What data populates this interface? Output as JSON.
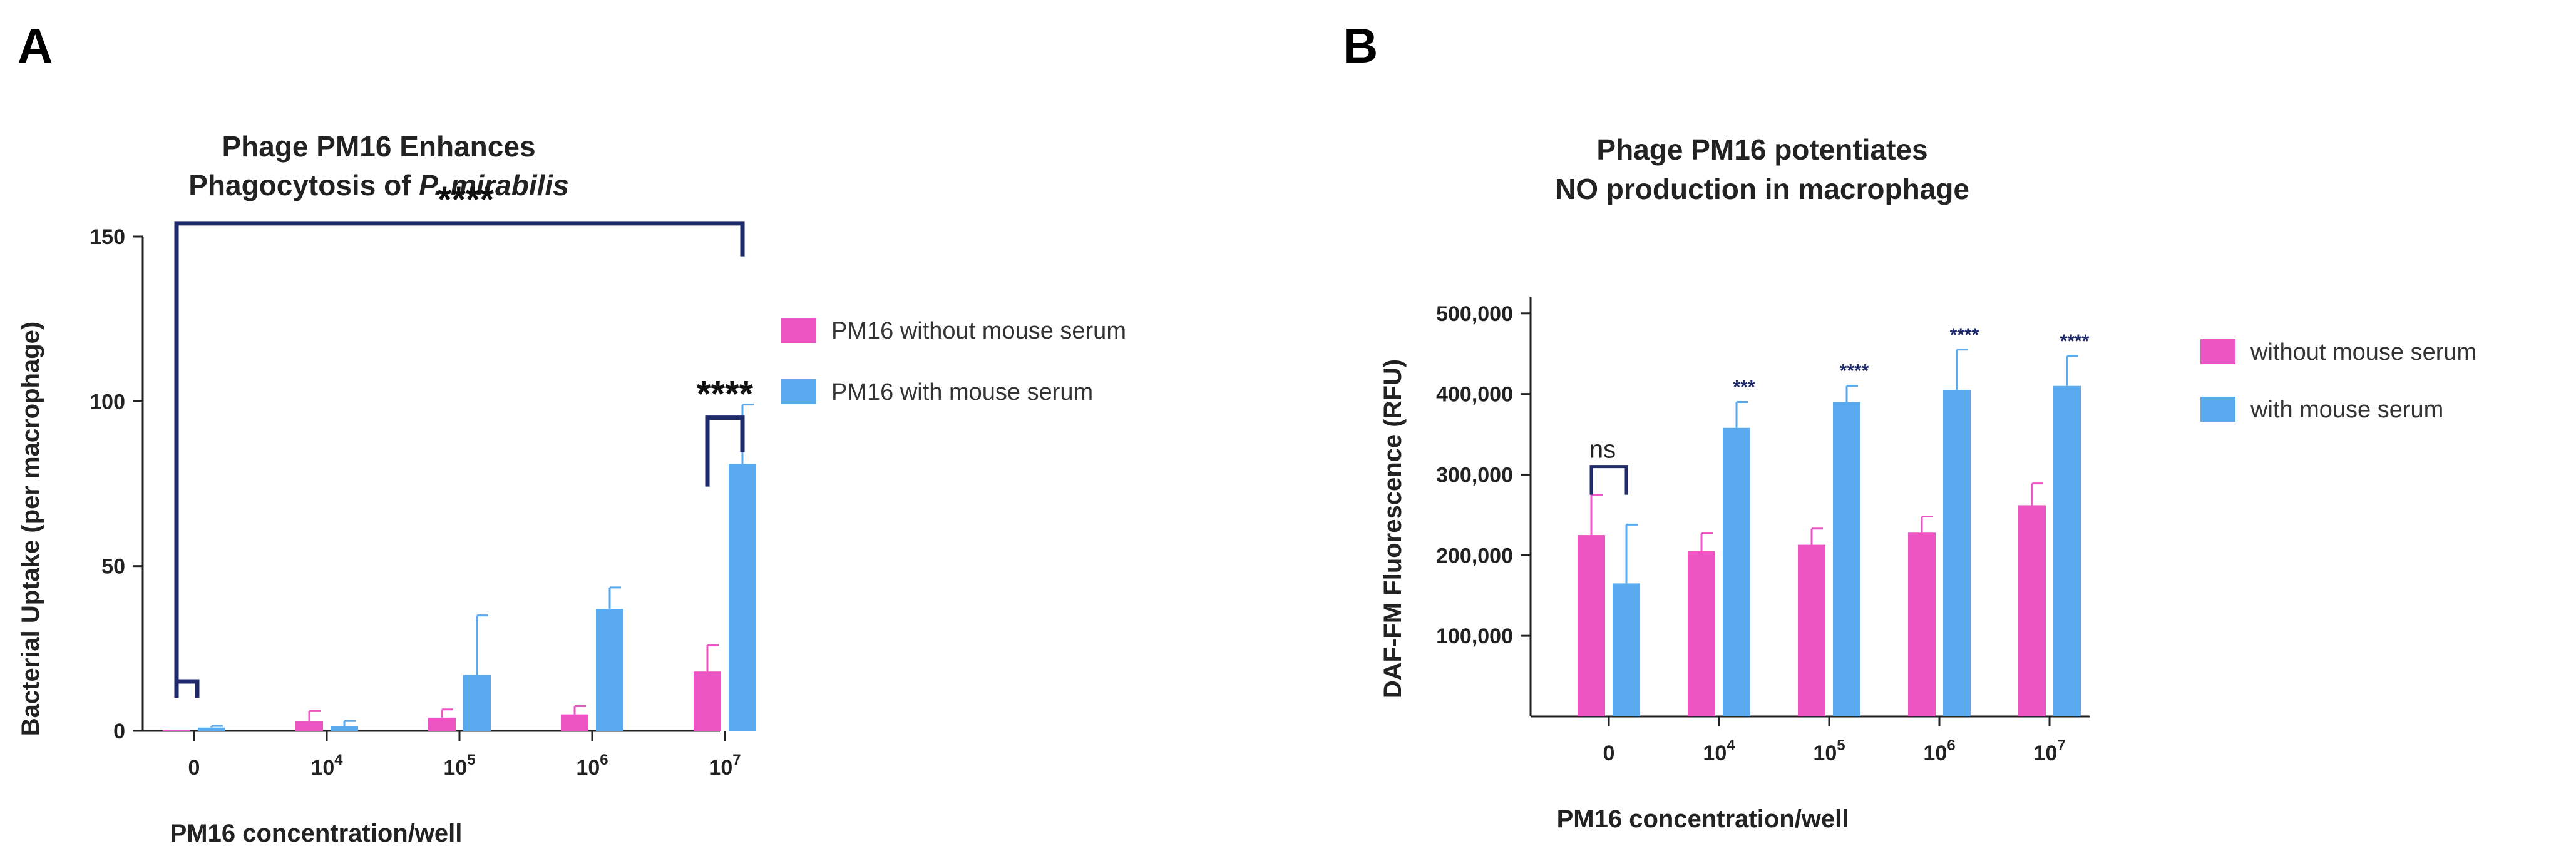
{
  "panels": {
    "a": {
      "letter": "A"
    },
    "b": {
      "letter": "B"
    }
  },
  "colors": {
    "without": "#ee55c4",
    "with": "#5aaaf0",
    "bracket": "#1f2a6b",
    "axis": "#222222"
  },
  "chart_data": [
    {
      "type": "bar",
      "title_line1": "Phage PM16 Enhances",
      "title_line2_prefix": "Phagocytosis of ",
      "title_line2_italic": "P. mirabilis",
      "xlabel": "PM16 concentration/well",
      "ylabel": "Bacterial Uptake (per macrophage)",
      "ylim": [
        0,
        150
      ],
      "yticks": [
        "0",
        "50",
        "100",
        "150"
      ],
      "ytick_values": [
        0,
        50,
        100,
        150
      ],
      "categories": [
        {
          "base": "0",
          "exp": ""
        },
        {
          "base": "10",
          "exp": "4"
        },
        {
          "base": "10",
          "exp": "5"
        },
        {
          "base": "10",
          "exp": "6"
        },
        {
          "base": "10",
          "exp": "7"
        }
      ],
      "series": [
        {
          "name": "PM16 without mouse serum",
          "values": [
            0,
            3,
            4,
            5,
            18
          ],
          "errors": [
            0,
            3,
            2.5,
            2.5,
            8
          ]
        },
        {
          "name": "PM16 with mouse serum",
          "values": [
            1,
            1.5,
            17,
            37,
            81
          ],
          "errors": [
            0.5,
            1.5,
            18,
            6.5,
            18
          ]
        }
      ],
      "legend_position": "right",
      "annotations": [
        {
          "label": "****",
          "type": "wide",
          "from_category": 0,
          "to_category": 4,
          "level": 154
        },
        {
          "label": "****",
          "type": "pair",
          "category": 4,
          "level": 95
        }
      ]
    },
    {
      "type": "bar",
      "title_line1": "Phage PM16 potentiates",
      "title_line2": "NO production in macrophage",
      "xlabel": "PM16 concentration/well",
      "ylabel": "DAF-FM Fluorescence (RFU)",
      "ylim": [
        0,
        520000
      ],
      "yticks": [
        "100,000",
        "200,000",
        "300,000",
        "400,000",
        "500,000"
      ],
      "ytick_values": [
        100000,
        200000,
        300000,
        400000,
        500000
      ],
      "categories": [
        {
          "base": "0",
          "exp": ""
        },
        {
          "base": "10",
          "exp": "4"
        },
        {
          "base": "10",
          "exp": "5"
        },
        {
          "base": "10",
          "exp": "6"
        },
        {
          "base": "10",
          "exp": "7"
        }
      ],
      "series": [
        {
          "name": "without mouse serum",
          "values": [
            225000,
            205000,
            213000,
            228000,
            262000
          ],
          "errors": [
            50000,
            22000,
            20000,
            20000,
            27000
          ]
        },
        {
          "name": "with mouse serum",
          "values": [
            165000,
            358000,
            390000,
            405000,
            410000
          ],
          "errors": [
            73000,
            32000,
            20000,
            50000,
            37000
          ]
        }
      ],
      "legend_position": "right",
      "annotations": [
        {
          "label": "ns",
          "type": "pair",
          "category": 0,
          "level": 310000
        },
        {
          "label": "***",
          "type": "above",
          "category": 1,
          "series": 1
        },
        {
          "label": "****",
          "type": "above",
          "category": 2,
          "series": 1
        },
        {
          "label": "****",
          "type": "above",
          "category": 3,
          "series": 1
        },
        {
          "label": "****",
          "type": "above",
          "category": 4,
          "series": 1
        }
      ]
    }
  ]
}
